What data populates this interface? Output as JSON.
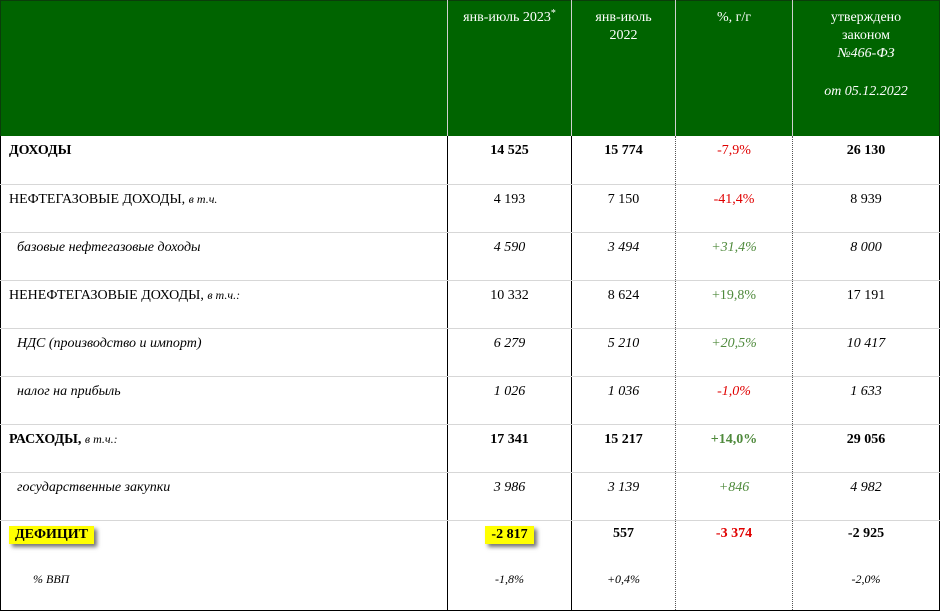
{
  "header": {
    "col1": "",
    "col2": "янв-июль 2023",
    "col2_mark": "*",
    "col3_line1": "янв-июль",
    "col3_line2": "2022",
    "col4": "%, г/г",
    "col5_line1": "утверждено",
    "col5_line2": "законом",
    "col5_line3": "№466-ФЗ",
    "col5_line4": "от 05.12.2022"
  },
  "rows": [
    {
      "label": "ДОХОДЫ",
      "qualifier": "",
      "v2023": "14 525",
      "v2022": "15 774",
      "pct": "-7,9%",
      "law": "26 130"
    },
    {
      "label": "НЕФТЕГАЗОВЫЕ ДОХОДЫ,",
      "qualifier": "в т.ч.",
      "v2023": "4 193",
      "v2022": "7 150",
      "pct": "-41,4%",
      "law": "8 939"
    },
    {
      "label": "базовые нефтегазовые доходы",
      "qualifier": "",
      "v2023": "4 590",
      "v2022": "3 494",
      "pct": "+31,4%",
      "law": "8 000"
    },
    {
      "label": "НЕНЕФТЕГАЗОВЫЕ ДОХОДЫ,",
      "qualifier": "в т.ч.:",
      "v2023": "10 332",
      "v2022": "8 624",
      "pct": "+19,8%",
      "law": "17 191"
    },
    {
      "label": "НДС (производство и импорт)",
      "qualifier": "",
      "v2023": "6 279",
      "v2022": "5 210",
      "pct": "+20,5%",
      "law": "10 417"
    },
    {
      "label": "налог на прибыль",
      "qualifier": "",
      "v2023": "1 026",
      "v2022": "1 036",
      "pct": "-1,0%",
      "law": "1 633"
    },
    {
      "label": "РАСХОДЫ,",
      "qualifier": "в т.ч.:",
      "v2023": "17 341",
      "v2022": "15 217",
      "pct": "+14,0%",
      "law": "29 056"
    },
    {
      "label": "государственные закупки",
      "qualifier": "",
      "v2023": "3 986",
      "v2022": "3 139",
      "pct": "+846",
      "law": "4 982"
    },
    {
      "label": "ДЕФИЦИТ",
      "qualifier": "",
      "v2023": "-2 817",
      "v2022": "557",
      "pct": "-3 374",
      "law": "-2 925"
    },
    {
      "label": "% ВВП",
      "qualifier": "",
      "v2023": "-1,8%",
      "v2022": "+0,4%",
      "pct": "",
      "law": "-2,0%"
    }
  ],
  "colors": {
    "header_bg": "#006400",
    "negative": "#e00000",
    "positive": "#4f8a3c",
    "highlight": "#ffff00"
  }
}
